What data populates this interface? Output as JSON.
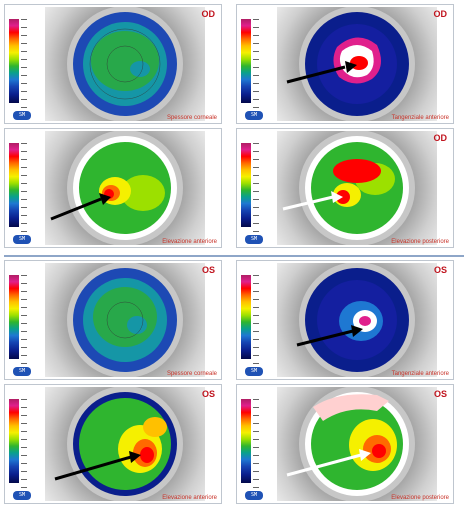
{
  "panels": [
    {
      "id": "p1",
      "eye": "OD",
      "label": "Spessore corneale",
      "map": "thickness"
    },
    {
      "id": "p2",
      "eye": "OD",
      "label": "Tangenziale anteriore",
      "map": "tangential"
    },
    {
      "id": "p3",
      "eye": "",
      "label": "Elevazione anteriore",
      "map": "elev_ant"
    },
    {
      "id": "p4",
      "eye": "OD",
      "label": "Elevazione posteriore",
      "map": "elev_post"
    },
    {
      "id": "p5",
      "eye": "OS",
      "label": "Spessore corneale",
      "map": "thickness"
    },
    {
      "id": "p6",
      "eye": "OS",
      "label": "Tangenziale anteriore",
      "map": "tangential"
    },
    {
      "id": "p7",
      "eye": "OS",
      "label": "Elevazione anteriore",
      "map": "elev_ant"
    },
    {
      "id": "p8",
      "eye": "OS",
      "label": "Elevazione posteriore",
      "map": "elev_post"
    }
  ],
  "scale_unit": "µm",
  "logo_text": "SM"
}
